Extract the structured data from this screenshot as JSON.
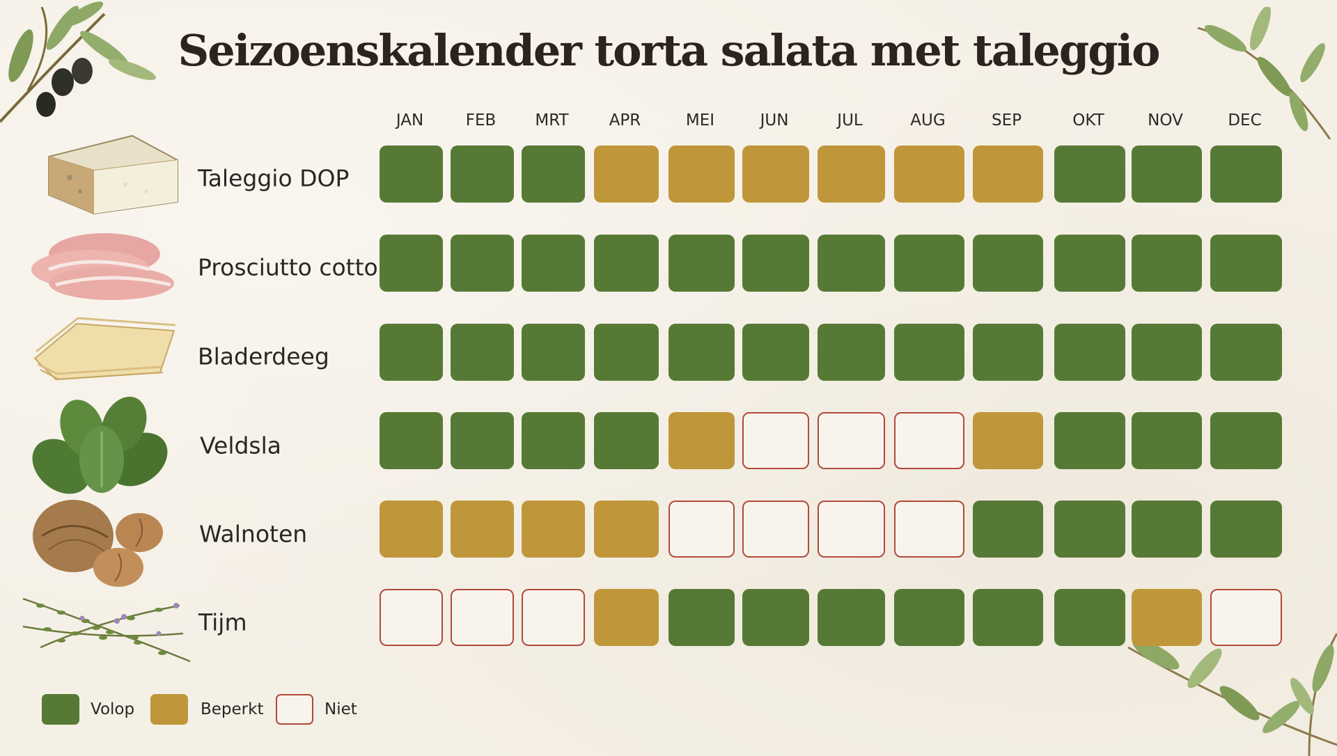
{
  "title": "Seizoenskalender torta salata met taleggio",
  "colors": {
    "volop": "#567a36",
    "beperkt": "#bf973a",
    "niet_border": "#b04a3c",
    "background": "#f5f0e6"
  },
  "chart_data": {
    "type": "table",
    "title": "Seizoenskalender torta salata met taleggio",
    "months": [
      "JAN",
      "FEB",
      "MRT",
      "APR",
      "MEI",
      "JUN",
      "JUL",
      "AUG",
      "SEP",
      "OKT",
      "NOV",
      "DEC"
    ],
    "rows": [
      {
        "name": "Taleggio DOP",
        "icon": "cheese-icon",
        "values": [
          "volop",
          "volop",
          "volop",
          "beperkt",
          "beperkt",
          "beperkt",
          "beperkt",
          "beperkt",
          "beperkt",
          "volop",
          "volop",
          "volop"
        ]
      },
      {
        "name": "Prosciutto cotto",
        "icon": "ham-icon",
        "values": [
          "volop",
          "volop",
          "volop",
          "volop",
          "volop",
          "volop",
          "volop",
          "volop",
          "volop",
          "volop",
          "volop",
          "volop"
        ]
      },
      {
        "name": "Bladerdeeg",
        "icon": "pastry-icon",
        "values": [
          "volop",
          "volop",
          "volop",
          "volop",
          "volop",
          "volop",
          "volop",
          "volop",
          "volop",
          "volop",
          "volop",
          "volop"
        ]
      },
      {
        "name": "Veldsla",
        "icon": "lettuce-icon",
        "values": [
          "volop",
          "volop",
          "volop",
          "volop",
          "beperkt",
          "niet",
          "niet",
          "niet",
          "beperkt",
          "volop",
          "volop",
          "volop"
        ]
      },
      {
        "name": "Walnoten",
        "icon": "walnut-icon",
        "values": [
          "beperkt",
          "beperkt",
          "beperkt",
          "beperkt",
          "niet",
          "niet",
          "niet",
          "niet",
          "volop",
          "volop",
          "volop",
          "volop"
        ]
      },
      {
        "name": "Tijm",
        "icon": "thyme-icon",
        "values": [
          "niet",
          "niet",
          "niet",
          "beperkt",
          "volop",
          "volop",
          "volop",
          "volop",
          "volop",
          "volop",
          "beperkt",
          "niet"
        ]
      }
    ],
    "legend": [
      {
        "key": "volop",
        "label": "Volop"
      },
      {
        "key": "beperkt",
        "label": "Beperkt"
      },
      {
        "key": "niet",
        "label": "Niet"
      }
    ],
    "legend_position": "bottom-left"
  }
}
